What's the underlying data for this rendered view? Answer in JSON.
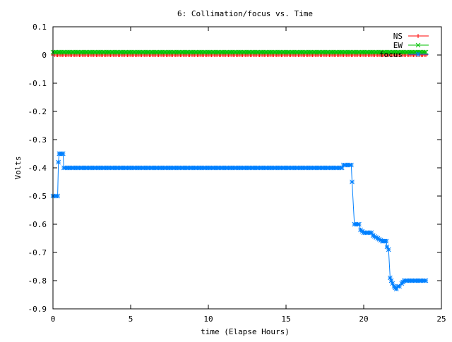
{
  "chart_data": {
    "type": "line",
    "title": "6: Collimation/focus vs. Time",
    "xlabel": "time (Elapse Hours)",
    "ylabel": "Volts",
    "xlim": [
      0,
      25
    ],
    "ylim": [
      -0.9,
      0.1
    ],
    "xticks": [
      0,
      5,
      10,
      15,
      20,
      25
    ],
    "xtick_labels": [
      "0",
      "5",
      "10",
      "15",
      "20",
      "25"
    ],
    "yticks": [
      0.1,
      0,
      -0.1,
      -0.2,
      -0.3,
      -0.4,
      -0.5,
      -0.6,
      -0.7,
      -0.8,
      -0.9
    ],
    "ytick_labels": [
      "0.1",
      "0",
      "-0.1",
      "-0.2",
      "-0.3",
      "-0.4",
      "-0.5",
      "-0.6",
      "-0.7",
      "-0.8",
      "-0.9"
    ],
    "grid": false,
    "legend_position": "top-right",
    "series": [
      {
        "name": "NS",
        "color": "#ff0000",
        "marker": "plus",
        "x_start": 0,
        "x_end": 24,
        "x_step": 0.1,
        "y_constant": 0.0
      },
      {
        "name": "EW",
        "color": "#00c000",
        "marker": "cross",
        "x_start": 0,
        "x_end": 24,
        "x_step": 0.1,
        "y_constant": 0.01
      },
      {
        "name": "focus",
        "color": "#0080ff",
        "marker": "star",
        "x_step": 0.1,
        "points": [
          [
            0.0,
            -0.5
          ],
          [
            0.3,
            -0.5
          ],
          [
            0.35,
            -0.38
          ],
          [
            0.4,
            -0.35
          ],
          [
            0.65,
            -0.35
          ],
          [
            0.7,
            -0.4
          ],
          [
            18.6,
            -0.4
          ],
          [
            18.7,
            -0.39
          ],
          [
            19.2,
            -0.39
          ],
          [
            19.25,
            -0.45
          ],
          [
            19.4,
            -0.6
          ],
          [
            19.7,
            -0.6
          ],
          [
            19.8,
            -0.62
          ],
          [
            20.0,
            -0.63
          ],
          [
            20.5,
            -0.63
          ],
          [
            20.6,
            -0.64
          ],
          [
            20.9,
            -0.65
          ],
          [
            21.2,
            -0.66
          ],
          [
            21.45,
            -0.66
          ],
          [
            21.5,
            -0.68
          ],
          [
            21.6,
            -0.69
          ],
          [
            21.7,
            -0.79
          ],
          [
            21.85,
            -0.81
          ],
          [
            21.95,
            -0.82
          ],
          [
            22.1,
            -0.83
          ],
          [
            22.2,
            -0.82
          ],
          [
            22.3,
            -0.82
          ],
          [
            22.45,
            -0.81
          ],
          [
            22.6,
            -0.8
          ],
          [
            24.0,
            -0.8
          ]
        ]
      }
    ]
  }
}
